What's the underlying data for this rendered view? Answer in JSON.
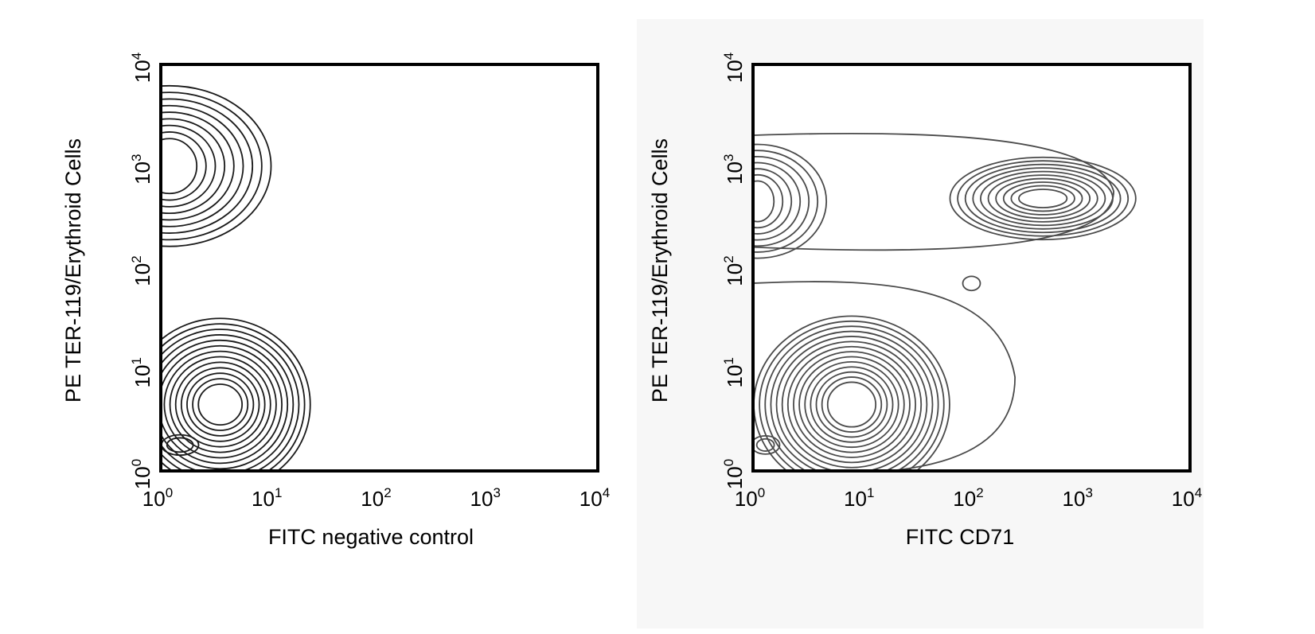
{
  "chart_data": [
    {
      "type": "contour",
      "xlabel": "FITC negative control",
      "ylabel": "PE TER-119/Erythroid Cells",
      "x_scale": "log",
      "y_scale": "log",
      "xlim": [
        1,
        10000
      ],
      "ylim": [
        1,
        10000
      ],
      "x_ticks": [
        {
          "base": "10",
          "exp": "0"
        },
        {
          "base": "10",
          "exp": "1"
        },
        {
          "base": "10",
          "exp": "2"
        },
        {
          "base": "10",
          "exp": "3"
        },
        {
          "base": "10",
          "exp": "4"
        }
      ],
      "y_ticks": [
        {
          "base": "10",
          "exp": "0"
        },
        {
          "base": "10",
          "exp": "1"
        },
        {
          "base": "10",
          "exp": "2"
        },
        {
          "base": "10",
          "exp": "3"
        },
        {
          "base": "10",
          "exp": "4"
        }
      ],
      "populations": [
        {
          "center_x": 1.2,
          "center_y": 1000,
          "spread_x": 0.25,
          "spread_y": 0.27,
          "levels": 9,
          "step_x": 0.085,
          "step_y": 0.065
        },
        {
          "center_x": 3.5,
          "center_y": 4.5,
          "spread_x": 0.2,
          "spread_y": 0.2,
          "levels": 13,
          "step_x": 0.052,
          "step_y": 0.054
        },
        {
          "center_x": 1.5,
          "center_y": 1.8,
          "spread_x": 0.12,
          "spread_y": 0.07,
          "levels": 2,
          "step_x": 0.05,
          "step_y": 0.03
        }
      ],
      "background": "#ffffff",
      "line_color": "#1a1a1a"
    },
    {
      "type": "contour",
      "xlabel": "FITC CD71",
      "ylabel": "PE TER-119/Erythroid Cells",
      "x_scale": "log",
      "y_scale": "log",
      "xlim": [
        1,
        10000
      ],
      "ylim": [
        1,
        10000
      ],
      "x_ticks": [
        {
          "base": "10",
          "exp": "0"
        },
        {
          "base": "10",
          "exp": "1"
        },
        {
          "base": "10",
          "exp": "2"
        },
        {
          "base": "10",
          "exp": "3"
        },
        {
          "base": "10",
          "exp": "4"
        }
      ],
      "y_ticks": [
        {
          "base": "10",
          "exp": "0"
        },
        {
          "base": "10",
          "exp": "1"
        },
        {
          "base": "10",
          "exp": "2"
        },
        {
          "base": "10",
          "exp": "3"
        },
        {
          "base": "10",
          "exp": "4"
        }
      ],
      "populations": [
        {
          "center_x": 450,
          "center_y": 480,
          "spread_x": 0.22,
          "spread_y": 0.09,
          "levels": 10,
          "step_x": 0.07,
          "step_y": 0.035
        },
        {
          "center_x": 1.1,
          "center_y": 450,
          "spread_x": 0.15,
          "spread_y": 0.2,
          "levels": 7,
          "step_x": 0.08,
          "step_y": 0.06
        },
        {
          "center_x": 8,
          "center_y": 4.5,
          "spread_x": 0.22,
          "spread_y": 0.22,
          "levels": 14,
          "step_x": 0.052,
          "step_y": 0.05
        },
        {
          "center_x": 100,
          "center_y": 70,
          "spread_x": 0.08,
          "spread_y": 0.07,
          "levels": 1,
          "step_x": 0.05,
          "step_y": 0.05
        },
        {
          "center_x": 1.3,
          "center_y": 1.8,
          "spread_x": 0.08,
          "spread_y": 0.06,
          "levels": 2,
          "step_x": 0.05,
          "step_y": 0.03
        }
      ],
      "envelopes": [
        {
          "x0": 1,
          "x1": 2000,
          "y0": 160,
          "y1": 2000
        },
        {
          "x0": 1,
          "x1": 250,
          "y0": 1,
          "y1": 70
        }
      ],
      "background": "#f7f7f7",
      "line_color": "#4a4a4a"
    }
  ]
}
